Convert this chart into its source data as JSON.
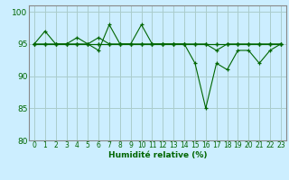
{
  "title": "",
  "xlabel": "Humidité relative (%)",
  "ylabel": "",
  "background_color": "#cceeff",
  "line_color": "#006600",
  "marker_color": "#006600",
  "grid_color": "#aacccc",
  "xlim": [
    -0.5,
    23.5
  ],
  "ylim": [
    80,
    101
  ],
  "yticks": [
    80,
    85,
    90,
    95,
    100
  ],
  "xticks": [
    0,
    1,
    2,
    3,
    4,
    5,
    6,
    7,
    8,
    9,
    10,
    11,
    12,
    13,
    14,
    15,
    16,
    17,
    18,
    19,
    20,
    21,
    22,
    23
  ],
  "series": [
    [
      95,
      97,
      95,
      95,
      95,
      95,
      94,
      98,
      95,
      95,
      98,
      95,
      95,
      95,
      95,
      92,
      85,
      92,
      91,
      94,
      94,
      92,
      94,
      95
    ],
    [
      95,
      95,
      95,
      95,
      96,
      95,
      96,
      95,
      95,
      95,
      95,
      95,
      95,
      95,
      95,
      95,
      95,
      94,
      95,
      95,
      95,
      95,
      95,
      95
    ],
    [
      95,
      95,
      95,
      95,
      95,
      95,
      95,
      95,
      95,
      95,
      95,
      95,
      95,
      95,
      95,
      95,
      95,
      95,
      95,
      95,
      95,
      95,
      95,
      95
    ],
    [
      95,
      95,
      95,
      95,
      95,
      95,
      95,
      95,
      95,
      95,
      95,
      95,
      95,
      95,
      95,
      95,
      95,
      95,
      95,
      95,
      95,
      95,
      95,
      95
    ]
  ]
}
